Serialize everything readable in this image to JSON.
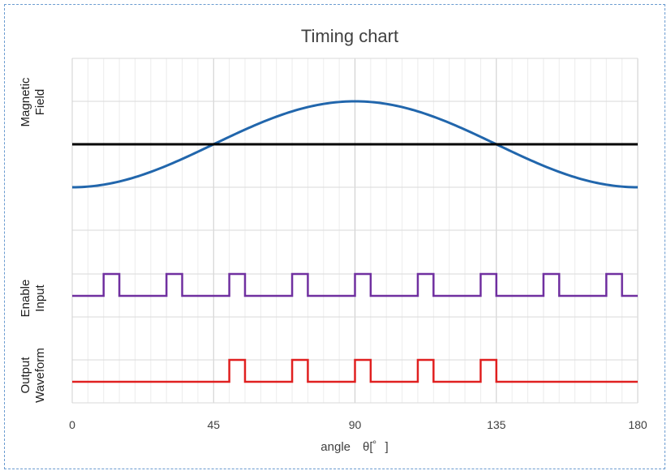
{
  "chart_data": {
    "type": "line",
    "title": "Timing chart",
    "xlabel": "angle　θ[゜]",
    "xlim": [
      0,
      180
    ],
    "xticks": [
      0,
      45,
      90,
      135,
      180
    ],
    "grid": true,
    "panels": [
      {
        "label": "Magnetic\nField",
        "series": [
          {
            "kind": "sine",
            "color": "#2166ac",
            "x": [
              0,
              15,
              30,
              45,
              60,
              75,
              90,
              105,
              120,
              135,
              150,
              165,
              180
            ],
            "y": [
              0,
              0.067,
              0.25,
              0.5,
              0.75,
              0.933,
              1,
              0.933,
              0.75,
              0.5,
              0.25,
              0.067,
              0
            ]
          },
          {
            "kind": "threshold",
            "color": "#000000",
            "y": 0.5
          }
        ]
      },
      {
        "label": "Enable\nInput",
        "series": [
          {
            "kind": "pulse",
            "color": "#7030a0",
            "high_intervals": [
              [
                10,
                15
              ],
              [
                30,
                35
              ],
              [
                50,
                55
              ],
              [
                70,
                75
              ],
              [
                90,
                95
              ],
              [
                110,
                115
              ],
              [
                130,
                135
              ],
              [
                150,
                155
              ],
              [
                170,
                175
              ]
            ]
          }
        ]
      },
      {
        "label": "Output\nWaveform",
        "series": [
          {
            "kind": "pulse",
            "color": "#e02020",
            "high_intervals": [
              [
                50,
                55
              ],
              [
                70,
                75
              ],
              [
                90,
                95
              ],
              [
                110,
                115
              ],
              [
                130,
                135
              ]
            ]
          }
        ]
      }
    ]
  }
}
